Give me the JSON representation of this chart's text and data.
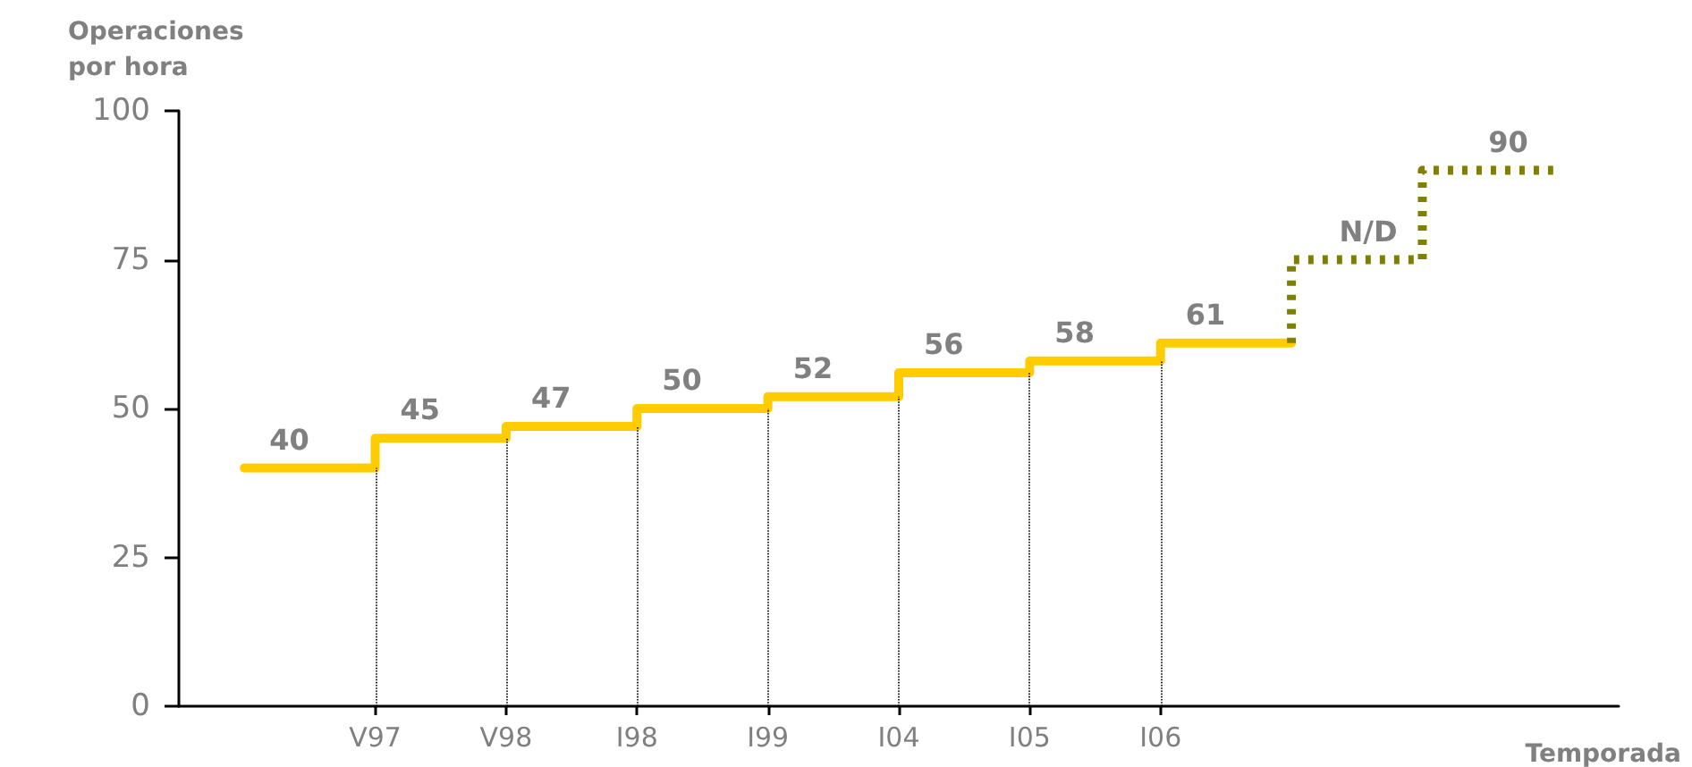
{
  "chart_data": {
    "type": "step",
    "xlabel": "Temporada",
    "ylabel": "Operaciones\npor hora",
    "categories": [
      null,
      "V97",
      "V98",
      "I98",
      "I99",
      "I04",
      "I05",
      "I06",
      null,
      null,
      null
    ],
    "ylim": [
      0,
      100
    ],
    "yticks": [
      0,
      25,
      50,
      75,
      100
    ],
    "grid": false,
    "ref_lines": [
      {
        "axis": "x",
        "value": "V97",
        "color": "#000000",
        "line_style": "dotted"
      },
      {
        "axis": "x",
        "value": "V98",
        "color": "#000000",
        "line_style": "dotted"
      },
      {
        "axis": "x",
        "value": "I98",
        "color": "#000000",
        "line_style": "dotted"
      },
      {
        "axis": "x",
        "value": "I99",
        "color": "#000000",
        "line_style": "dotted"
      },
      {
        "axis": "x",
        "value": "I04",
        "color": "#000000",
        "line_style": "dotted"
      },
      {
        "axis": "x",
        "value": "I05",
        "color": "#000000",
        "line_style": "dotted"
      },
      {
        "axis": "x",
        "value": "I06",
        "color": "#000000",
        "line_style": "dotted"
      }
    ],
    "series": [
      {
        "color": "#ffcc00",
        "line_style": "solid",
        "values": [
          40,
          45,
          47,
          50,
          52,
          56,
          58,
          61,
          61,
          null,
          null
        ],
        "value_labels": [
          "40",
          "45",
          "47",
          "50",
          "52",
          "56",
          "58",
          "61",
          null,
          null,
          null
        ]
      },
      {
        "color": "#808000",
        "line_style": "dashed",
        "values": [
          null,
          null,
          null,
          null,
          null,
          null,
          null,
          null,
          61,
          75,
          90
        ],
        "value_labels": [
          null,
          null,
          null,
          null,
          null,
          null,
          null,
          null,
          null,
          "N/D",
          "90"
        ]
      }
    ]
  }
}
